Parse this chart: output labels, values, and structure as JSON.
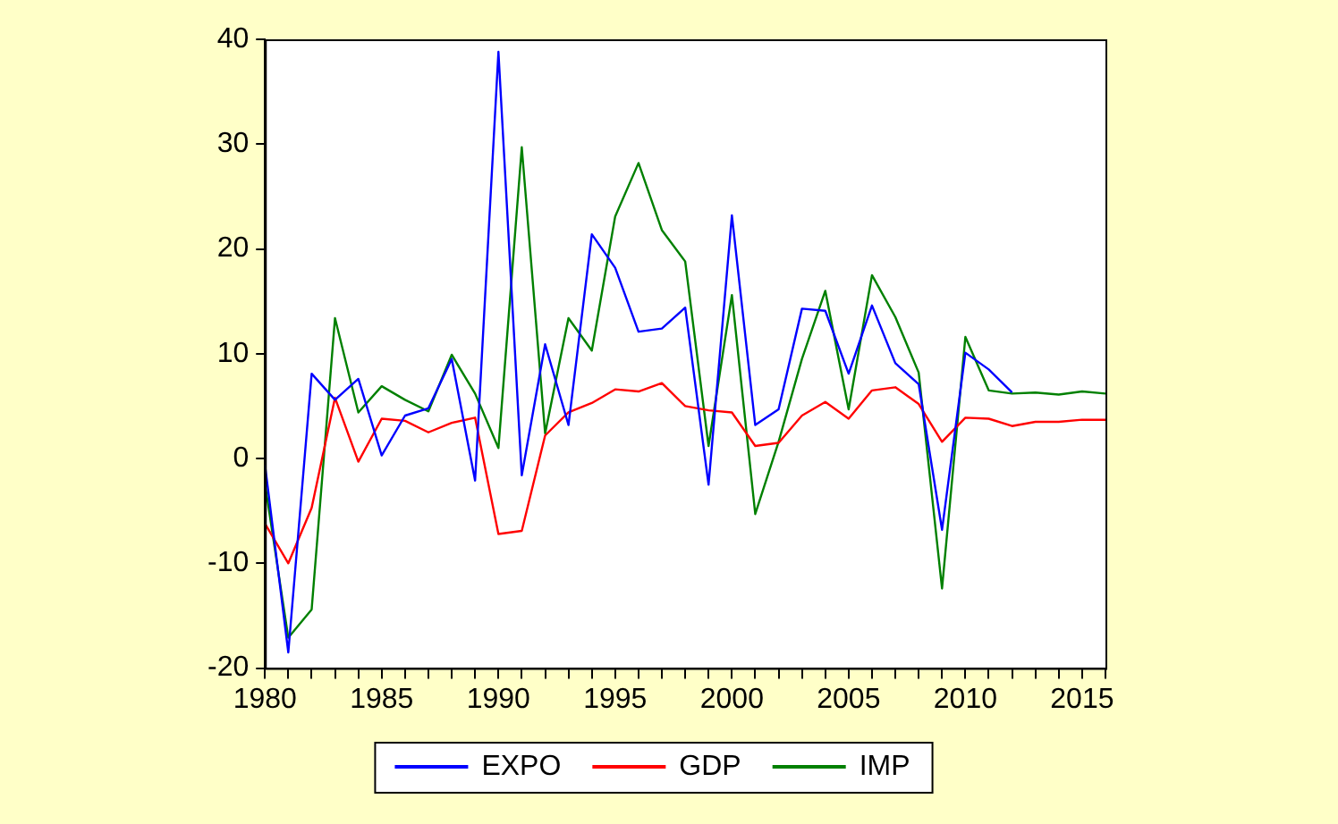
{
  "chart_data": {
    "type": "line",
    "x": [
      1980,
      1981,
      1982,
      1983,
      1984,
      1985,
      1986,
      1987,
      1988,
      1989,
      1990,
      1991,
      1992,
      1993,
      1994,
      1995,
      1996,
      1997,
      1998,
      1999,
      2000,
      2001,
      2002,
      2003,
      2004,
      2005,
      2006,
      2007,
      2008,
      2009,
      2010,
      2011,
      2012,
      2013,
      2014,
      2015,
      2016
    ],
    "series": [
      {
        "name": "EXPO",
        "color": "#0000ff",
        "values": [
          -0.6,
          -18.5,
          8.1,
          5.6,
          7.6,
          0.3,
          4.1,
          4.8,
          9.5,
          -2.1,
          38.8,
          -1.6,
          10.9,
          3.2,
          21.4,
          18.2,
          12.1,
          12.4,
          14.4,
          -2.5,
          23.2,
          3.2,
          4.7,
          14.3,
          14.1,
          8.1,
          14.6,
          9.1,
          7.1,
          -6.8,
          10.1,
          8.5,
          6.3,
          null,
          null,
          null,
          null
        ]
      },
      {
        "name": "GDP",
        "color": "#ff0000",
        "values": [
          -6.2,
          -10,
          -4.7,
          5.8,
          -0.3,
          3.8,
          3.6,
          2.5,
          3.4,
          3.9,
          -7.2,
          -6.9,
          2.2,
          4.4,
          5.3,
          6.6,
          6.4,
          7.2,
          5.0,
          4.6,
          4.4,
          1.2,
          1.5,
          4.1,
          5.4,
          3.8,
          6.5,
          6.8,
          5.2,
          1.6,
          3.9,
          3.8,
          3.1,
          3.5,
          3.5,
          3.7,
          3.7
        ]
      },
      {
        "name": "IMP",
        "color": "#008000",
        "values": [
          -2.4,
          -17.1,
          -14.4,
          13.4,
          4.4,
          6.9,
          5.6,
          4.5,
          9.9,
          6.2,
          1.0,
          29.7,
          2.4,
          13.4,
          10.3,
          23.1,
          28.2,
          21.8,
          18.8,
          1.2,
          15.6,
          -5.3,
          1.6,
          9.5,
          16.0,
          4.7,
          17.5,
          13.5,
          8.2,
          -12.4,
          11.6,
          6.5,
          6.2,
          6.3,
          6.1,
          6.4,
          6.2
        ]
      }
    ],
    "xlim": [
      1980,
      2016
    ],
    "xticks": [
      1980,
      {
        "value": 1981,
        "label": null
      },
      {
        "value": 1982,
        "label": null
      },
      {
        "value": 1983,
        "label": null
      },
      {
        "value": 1984,
        "label": null
      },
      1985,
      {
        "value": 1986,
        "label": null
      },
      {
        "value": 1987,
        "label": null
      },
      {
        "value": 1988,
        "label": null
      },
      {
        "value": 1989,
        "label": null
      },
      1990,
      {
        "value": 1991,
        "label": null
      },
      {
        "value": 1992,
        "label": null
      },
      {
        "value": 1993,
        "label": null
      },
      {
        "value": 1994,
        "label": null
      },
      1995,
      {
        "value": 1996,
        "label": null
      },
      {
        "value": 1997,
        "label": null
      },
      {
        "value": 1998,
        "label": null
      },
      {
        "value": 1999,
        "label": null
      },
      2000,
      {
        "value": 2001,
        "label": null
      },
      {
        "value": 2002,
        "label": null
      },
      {
        "value": 2003,
        "label": null
      },
      {
        "value": 2004,
        "label": null
      },
      2005,
      {
        "value": 2006,
        "label": null
      },
      {
        "value": 2007,
        "label": null
      },
      {
        "value": 2008,
        "label": null
      },
      {
        "value": 2009,
        "label": null
      },
      2010,
      {
        "value": 2011,
        "label": null
      },
      {
        "value": 2012,
        "label": null
      },
      {
        "value": 2013,
        "label": null
      },
      {
        "value": 2014,
        "label": null
      },
      2015,
      {
        "value": 2016,
        "label": null
      }
    ],
    "ylim": [
      -20,
      40
    ],
    "yticks": [
      -20,
      -10,
      0,
      10,
      20,
      30,
      40
    ],
    "grid": false,
    "legend": "bottom",
    "marker": "none",
    "line_style": "solid"
  }
}
